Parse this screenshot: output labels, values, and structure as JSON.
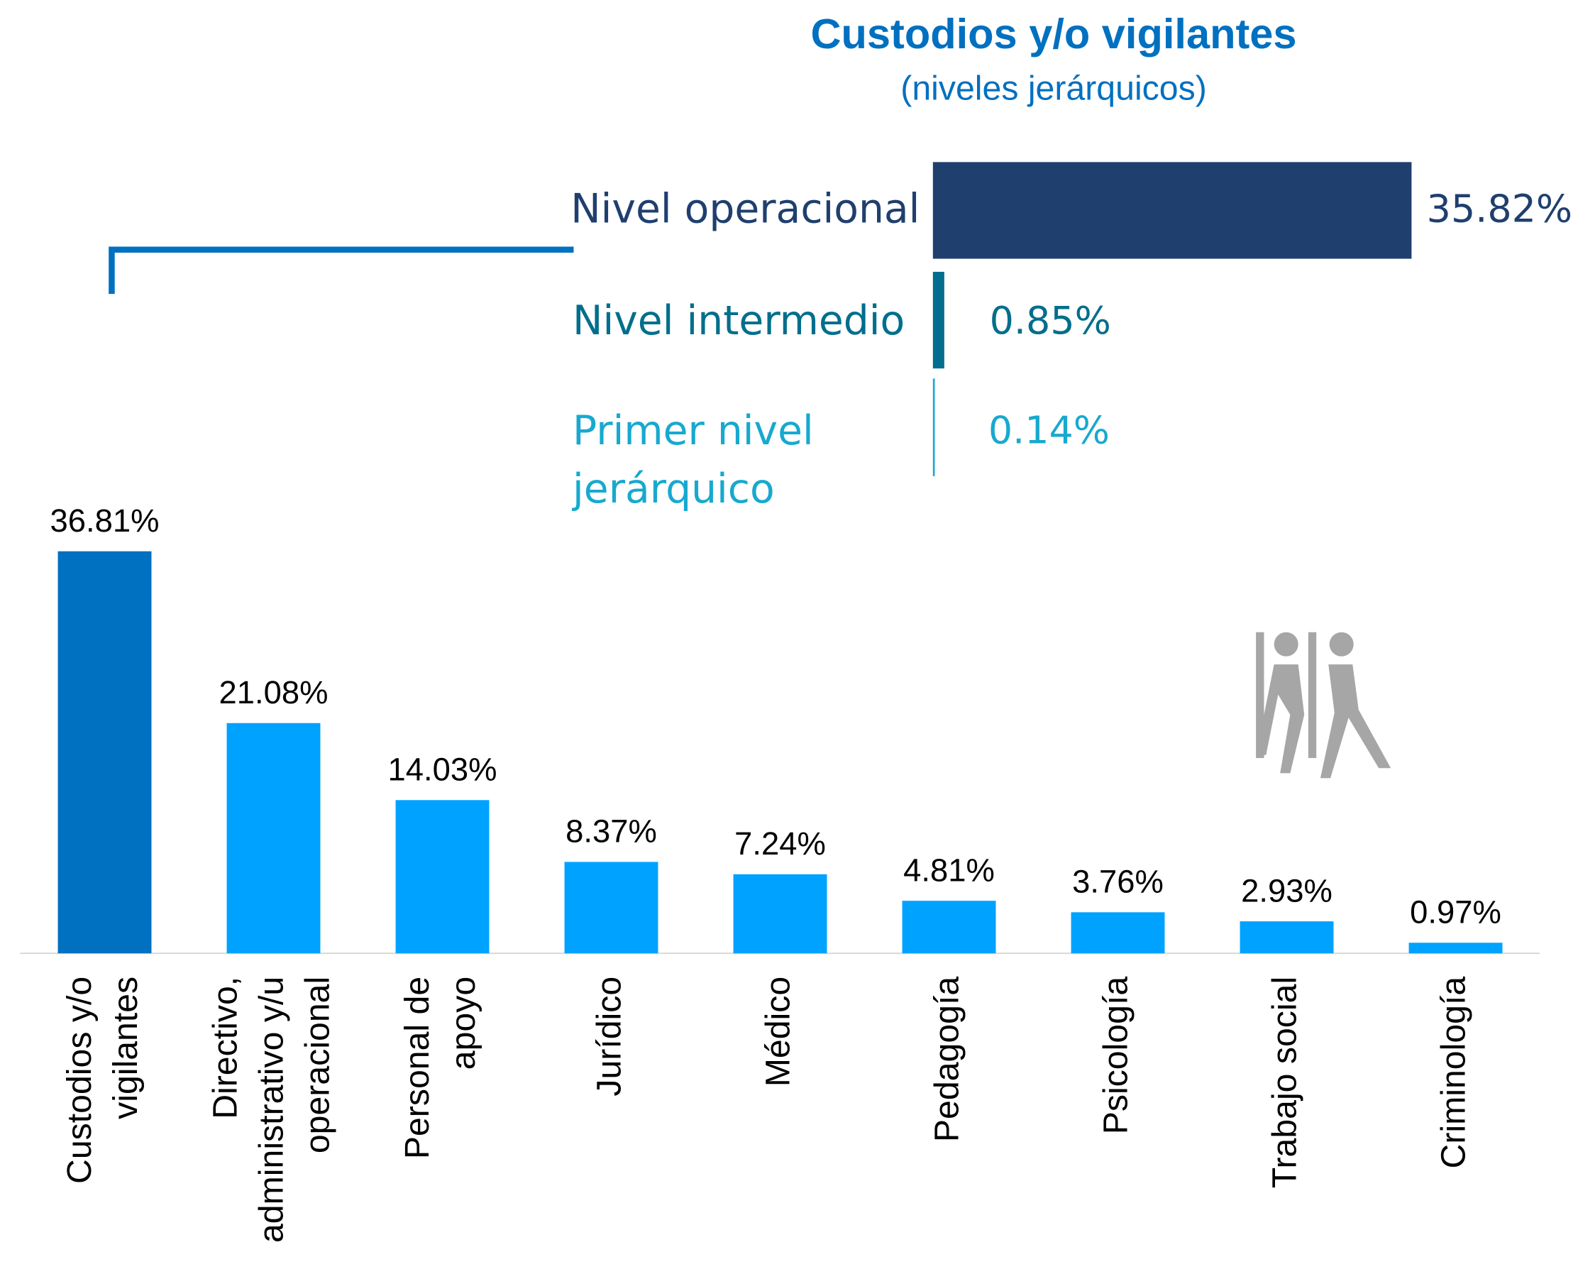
{
  "chart_data": [
    {
      "type": "bar",
      "categories": [
        "Custodios y/o\nvigilantes",
        "Directivo,\nadministrativo y/u\noperacional",
        "Personal de\napoyo",
        "Jurídico",
        "Médico",
        "Pedagogía",
        "Psicología",
        "Trabajo social",
        "Criminología"
      ],
      "values": [
        36.81,
        21.08,
        14.03,
        8.37,
        7.24,
        4.81,
        3.76,
        2.93,
        0.97
      ],
      "value_labels": [
        "36.81%",
        "21.08%",
        "14.03%",
        "8.37%",
        "7.24%",
        "4.81%",
        "3.76%",
        "2.93%",
        "0.97%"
      ],
      "colors": [
        "#0070c0",
        "#00a2ff",
        "#00a2ff",
        "#00a2ff",
        "#00a2ff",
        "#00a2ff",
        "#00a2ff",
        "#00a2ff",
        "#00a2ff"
      ],
      "ylim": [
        0,
        40
      ]
    },
    {
      "type": "hbar",
      "title": "Custodios y/o vigilantes",
      "subtitle": "(niveles jerárquicos)",
      "categories": [
        "Nivel operacional",
        "Nivel intermedio",
        "Primer nivel\njerárquico"
      ],
      "values": [
        35.82,
        0.85,
        0.14
      ],
      "value_labels": [
        "35.82%",
        "0.85%",
        "0.14%"
      ],
      "colors": [
        "#1f3f6e",
        "#006e8c",
        "#17a9cf"
      ],
      "xlim": [
        0,
        36
      ]
    }
  ]
}
